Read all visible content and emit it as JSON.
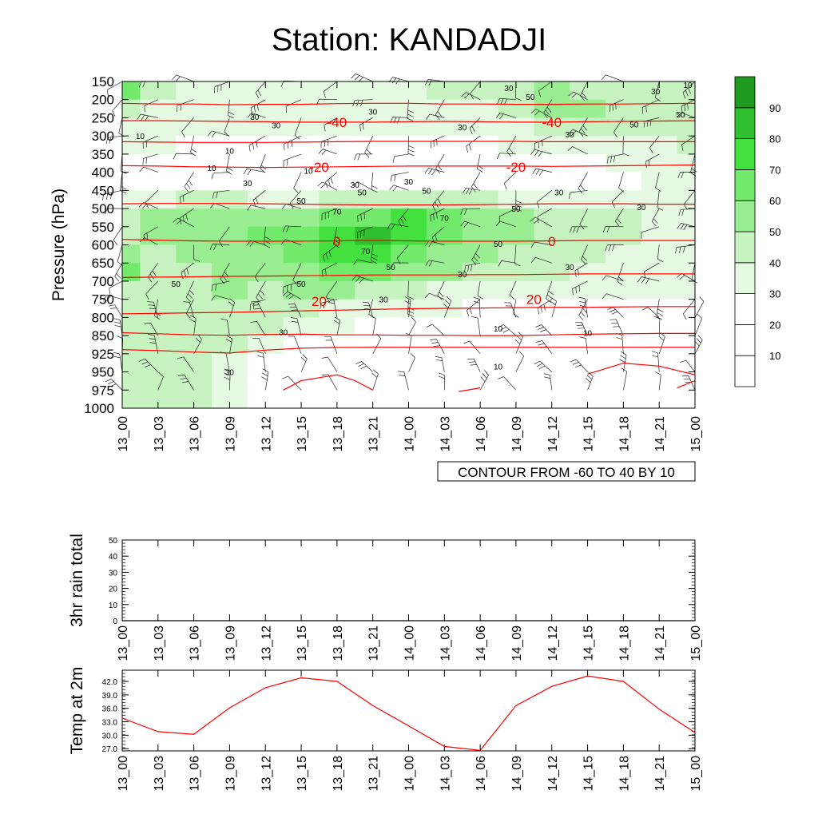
{
  "chart_data": [
    {
      "type": "heatmap",
      "title": "Station: KANDADJI",
      "ylabel": "Pressure (hPa)",
      "time_labels": [
        "13_00",
        "13_03",
        "13_06",
        "13_09",
        "13_12",
        "13_15",
        "13_18",
        "13_21",
        "14_00",
        "14_03",
        "14_06",
        "14_09",
        "14_12",
        "14_15",
        "14_18",
        "14_21",
        "15_00"
      ],
      "pressure_levels": [
        150,
        200,
        250,
        300,
        350,
        400,
        450,
        500,
        550,
        600,
        650,
        700,
        750,
        800,
        850,
        925,
        950,
        975,
        1000
      ],
      "shading_variable_levels": [
        10,
        20,
        30,
        40,
        50,
        60,
        70,
        80,
        90
      ],
      "colorbar_labels": [
        "10",
        "20",
        "30",
        "40",
        "50",
        "60",
        "70",
        "80",
        "90"
      ],
      "colorbar_colors": [
        "#ffffff",
        "#ffffff",
        "#ffffff",
        "#e6fae3",
        "#c6f3c0",
        "#99ee92",
        "#72ea6b",
        "#43e13d",
        "#2fbf2f",
        "#1e9a1e"
      ],
      "contour_info": "CONTOUR FROM -60 TO 40 BY 10",
      "temperature_contours": [
        {
          "label": "-40",
          "level": -40,
          "pressure": [
            210,
            212,
            212,
            214,
            213,
            213,
            211,
            210,
            210,
            212,
            212,
            213,
            213,
            212,
            212,
            211,
            210
          ]
        },
        {
          "label": "-40",
          "level": -40,
          "pressure": [
            258,
            258,
            259,
            260,
            261,
            262,
            262,
            262,
            261,
            260,
            261,
            262,
            262,
            261,
            260,
            259,
            258
          ]
        },
        {
          "label": "",
          "level": -30,
          "pressure": [
            316,
            317,
            318,
            318,
            318,
            317,
            316,
            315,
            315,
            315,
            315,
            315,
            316,
            316,
            316,
            316,
            316
          ]
        },
        {
          "label": "-20",
          "level": -20,
          "pressure": [
            382,
            383,
            385,
            386,
            387,
            386,
            385,
            384,
            383,
            383,
            383,
            383,
            384,
            383,
            382,
            381,
            380
          ]
        },
        {
          "label": "",
          "level": -10,
          "pressure": [
            487,
            486,
            486,
            486,
            487,
            488,
            489,
            490,
            490,
            490,
            489,
            488,
            487,
            487,
            487,
            488,
            488
          ]
        },
        {
          "label": "0",
          "level": 0,
          "pressure": [
            585,
            587,
            589,
            590,
            590,
            590,
            589,
            588,
            589,
            590,
            590,
            590,
            589,
            588,
            588,
            588,
            588
          ]
        },
        {
          "label": "",
          "level": 10,
          "pressure": [
            690,
            689,
            688,
            687,
            686,
            685,
            684,
            683,
            683,
            683,
            682,
            682,
            681,
            680,
            680,
            680,
            680
          ]
        },
        {
          "label": "20",
          "level": 20,
          "pressure": [
            790,
            789,
            787,
            786,
            784,
            782,
            780,
            778,
            776,
            775,
            774,
            773,
            772,
            772,
            771,
            770,
            770
          ]
        },
        {
          "label": "",
          "level": 30,
          "pressure": [
            842,
            845,
            848,
            849,
            847,
            846,
            848,
            848,
            849,
            849,
            850,
            850,
            848,
            846,
            845,
            844,
            844
          ]
        },
        {
          "label": "",
          "level": 40,
          "pressure": [
            908,
            912,
            918,
            922,
            910,
            902,
            899,
            898,
            898,
            898,
            898,
            898,
            898,
            898,
            898,
            898,
            898
          ]
        }
      ],
      "warm_contours": [
        {
          "time_index": [
            4.5,
            5.0,
            5.5,
            6.0,
            6.5,
            7.0
          ],
          "pressure": [
            975,
            962,
            958,
            954,
            962,
            975
          ]
        },
        {
          "time_index": [
            9.4,
            10.0
          ],
          "pressure": [
            977,
            972
          ]
        },
        {
          "time_index": [
            13.0,
            14.0,
            15.0,
            16.0
          ],
          "pressure": [
            953,
            938,
            942,
            954
          ]
        },
        {
          "time_index": [
            15.5,
            16.0
          ],
          "pressure": [
            972,
            962
          ]
        }
      ],
      "shading_cells": [
        [
          60,
          40,
          35,
          30,
          30,
          30,
          30,
          30,
          30,
          40,
          40,
          45,
          50,
          45,
          40,
          40,
          40
        ],
        [
          40,
          35,
          30,
          30,
          30,
          30,
          30,
          30,
          30,
          30,
          35,
          40,
          55,
          55,
          45,
          40,
          40
        ],
        [
          35,
          35,
          30,
          30,
          30,
          30,
          30,
          30,
          30,
          30,
          30,
          35,
          45,
          40,
          40,
          40,
          40
        ],
        [
          30,
          30,
          25,
          25,
          25,
          25,
          25,
          25,
          25,
          25,
          25,
          30,
          30,
          30,
          35,
          35,
          40
        ],
        [
          20,
          15,
          10,
          10,
          15,
          20,
          20,
          25,
          25,
          20,
          20,
          20,
          20,
          25,
          30,
          30,
          30
        ],
        [
          20,
          20,
          15,
          15,
          20,
          20,
          20,
          25,
          25,
          25,
          20,
          20,
          20,
          25,
          25,
          30,
          30
        ],
        [
          35,
          35,
          40,
          40,
          35,
          35,
          40,
          45,
          45,
          45,
          40,
          35,
          35,
          30,
          30,
          35,
          35
        ],
        [
          45,
          50,
          50,
          55,
          55,
          55,
          60,
          65,
          70,
          60,
          50,
          50,
          45,
          40,
          40,
          35,
          35
        ],
        [
          45,
          50,
          50,
          55,
          60,
          60,
          70,
          85,
          75,
          65,
          55,
          55,
          45,
          40,
          40,
          35,
          35
        ],
        [
          50,
          45,
          50,
          55,
          55,
          65,
          70,
          75,
          65,
          55,
          50,
          45,
          40,
          40,
          35,
          35,
          35
        ],
        [
          60,
          45,
          45,
          55,
          50,
          55,
          65,
          65,
          55,
          50,
          45,
          40,
          40,
          35,
          35,
          35,
          35
        ],
        [
          40,
          40,
          45,
          50,
          45,
          50,
          50,
          45,
          40,
          35,
          35,
          35,
          30,
          30,
          30,
          30,
          30
        ],
        [
          40,
          40,
          40,
          40,
          40,
          40,
          35,
          30,
          30,
          30,
          25,
          25,
          25,
          25,
          25,
          25,
          25
        ],
        [
          40,
          40,
          40,
          40,
          40,
          35,
          30,
          25,
          20,
          20,
          15,
          15,
          15,
          15,
          15,
          15,
          15
        ],
        [
          40,
          40,
          40,
          40,
          35,
          25,
          20,
          15,
          15,
          10,
          10,
          10,
          10,
          10,
          10,
          10,
          10
        ],
        [
          40,
          40,
          40,
          35,
          25,
          20,
          15,
          10,
          10,
          10,
          10,
          10,
          10,
          10,
          10,
          10,
          10
        ],
        [
          40,
          40,
          40,
          35,
          25,
          15,
          10,
          10,
          10,
          10,
          10,
          10,
          10,
          10,
          10,
          10,
          10
        ],
        [
          40,
          40,
          40,
          30,
          20,
          10,
          10,
          10,
          10,
          10,
          10,
          10,
          10,
          10,
          10,
          10,
          10
        ]
      ],
      "contour_labels": [
        {
          "t": 3.7,
          "p": 247,
          "text": "30"
        },
        {
          "t": 4.3,
          "p": 270,
          "text": "30"
        },
        {
          "t": 7.0,
          "p": 233,
          "text": "30"
        },
        {
          "t": 9.5,
          "p": 275,
          "text": "30"
        },
        {
          "t": 10.8,
          "p": 168,
          "text": "30"
        },
        {
          "t": 11.4,
          "p": 192,
          "text": "50"
        },
        {
          "t": 14.3,
          "p": 268,
          "text": "50"
        },
        {
          "t": 14.9,
          "p": 176,
          "text": "30"
        },
        {
          "t": 15.6,
          "p": 240,
          "text": "50"
        },
        {
          "t": 15.8,
          "p": 159,
          "text": "10"
        },
        {
          "t": 12.5,
          "p": 295,
          "text": "30"
        },
        {
          "t": 0.5,
          "p": 300,
          "text": "10"
        },
        {
          "t": 3.0,
          "p": 340,
          "text": "10"
        },
        {
          "t": 2.5,
          "p": 388,
          "text": "10"
        },
        {
          "t": 3.5,
          "p": 430,
          "text": "30"
        },
        {
          "t": 5.2,
          "p": 395,
          "text": "10"
        },
        {
          "t": 5.0,
          "p": 478,
          "text": "50"
        },
        {
          "t": 6.5,
          "p": 434,
          "text": "30"
        },
        {
          "t": 6.7,
          "p": 455,
          "text": "50"
        },
        {
          "t": 8.0,
          "p": 425,
          "text": "30"
        },
        {
          "t": 8.5,
          "p": 450,
          "text": "50"
        },
        {
          "t": 6.0,
          "p": 508,
          "text": "70"
        },
        {
          "t": 9.0,
          "p": 525,
          "text": "70"
        },
        {
          "t": 11.0,
          "p": 500,
          "text": "50"
        },
        {
          "t": 12.2,
          "p": 455,
          "text": "30"
        },
        {
          "t": 14.5,
          "p": 495,
          "text": "30"
        },
        {
          "t": 6.8,
          "p": 617,
          "text": "70"
        },
        {
          "t": 10.5,
          "p": 597,
          "text": "50"
        },
        {
          "t": 7.5,
          "p": 660,
          "text": "50"
        },
        {
          "t": 9.5,
          "p": 680,
          "text": "30"
        },
        {
          "t": 12.5,
          "p": 660,
          "text": "30"
        },
        {
          "t": 1.5,
          "p": 707,
          "text": "50"
        },
        {
          "t": 5.0,
          "p": 707,
          "text": "50"
        },
        {
          "t": 7.3,
          "p": 750,
          "text": "30"
        },
        {
          "t": 4.5,
          "p": 840,
          "text": "30"
        },
        {
          "t": 10.5,
          "p": 830,
          "text": "10"
        },
        {
          "t": 13.0,
          "p": 842,
          "text": "10"
        },
        {
          "t": 3.0,
          "p": 950,
          "text": "30"
        },
        {
          "t": 10.5,
          "p": 942,
          "text": "10"
        }
      ],
      "temperature_labels": [
        {
          "t": 6.0,
          "p": 262,
          "text": "-40"
        },
        {
          "t": 12.0,
          "p": 262,
          "text": "-40"
        },
        {
          "t": 5.5,
          "p": 386,
          "text": "-20"
        },
        {
          "t": 11.0,
          "p": 386,
          "text": "-20"
        },
        {
          "t": 6.0,
          "p": 590,
          "text": "0"
        },
        {
          "t": 12.0,
          "p": 590,
          "text": "0"
        },
        {
          "t": 5.5,
          "p": 755,
          "text": "20"
        },
        {
          "t": 11.5,
          "p": 750,
          "text": "20"
        }
      ],
      "wind_barbs": {
        "time_steps": 17,
        "levels": [
          150,
          200,
          250,
          300,
          350,
          400,
          450,
          500,
          550,
          600,
          650,
          700,
          750,
          800,
          850,
          925,
          950,
          975
        ],
        "prevailing": "mixed westerly aloft, easterly near surface"
      }
    },
    {
      "type": "line",
      "ylabel": "3hr rain total",
      "categories": [
        "13_00",
        "13_03",
        "13_06",
        "13_09",
        "13_12",
        "13_15",
        "13_18",
        "13_21",
        "14_00",
        "14_03",
        "14_06",
        "14_09",
        "14_12",
        "14_15",
        "14_18",
        "14_21",
        "15_00"
      ],
      "values": [
        0,
        0,
        0,
        0,
        0,
        0,
        0,
        0,
        0,
        0,
        0,
        0,
        0,
        0,
        0,
        0,
        0
      ],
      "ylim": [
        0,
        50
      ],
      "yticks": [
        "0",
        "10",
        "20",
        "30",
        "40",
        "50"
      ]
    },
    {
      "type": "line",
      "ylabel": "Temp at 2m",
      "categories": [
        "13_00",
        "13_03",
        "13_06",
        "13_09",
        "13_12",
        "13_15",
        "13_18",
        "13_21",
        "14_00",
        "14_03",
        "14_06",
        "14_09",
        "14_12",
        "14_15",
        "14_18",
        "14_21",
        "15_00"
      ],
      "values": [
        33.8,
        30.8,
        30.2,
        36.1,
        40.6,
        42.8,
        42.0,
        36.6,
        32.1,
        27.5,
        26.6,
        36.6,
        40.9,
        43.2,
        42.0,
        35.8,
        30.6
      ],
      "ylim": [
        26.5,
        44.5
      ],
      "yticks": [
        "27.0",
        "30.0",
        "33.0",
        "36.0",
        "39.0",
        "42.0"
      ],
      "line_color": "#ff0000"
    }
  ]
}
